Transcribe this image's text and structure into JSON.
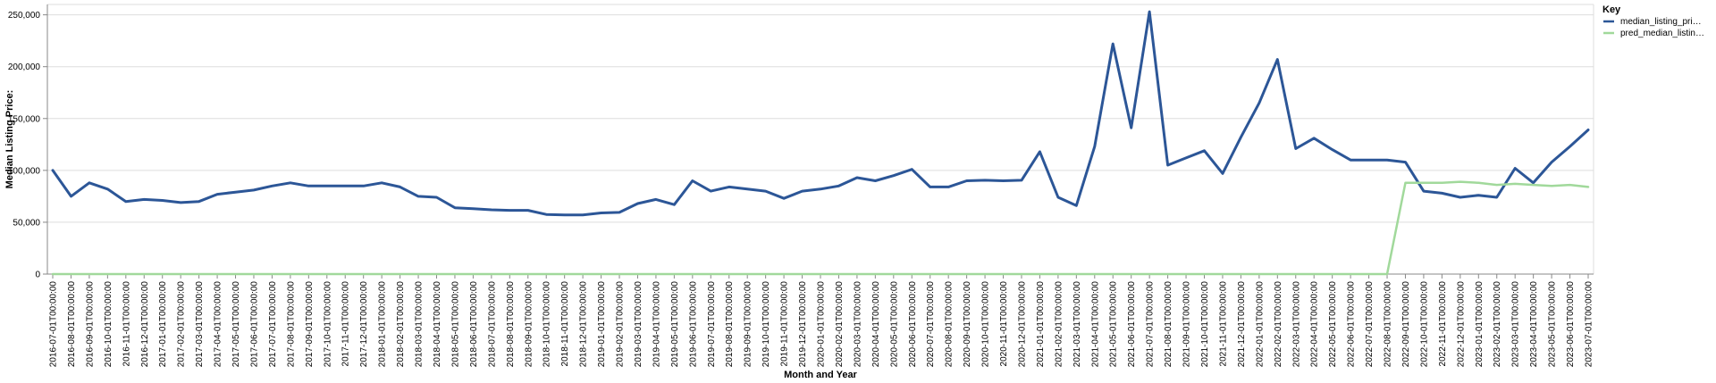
{
  "chart_data": {
    "type": "line",
    "title": "",
    "xlabel": "Month and Year",
    "ylabel": "Median Listing Price:",
    "ylim": [
      0,
      260000
    ],
    "yticks": [
      0,
      50000,
      100000,
      150000,
      200000,
      250000
    ],
    "ytick_labels": [
      "0",
      "50,000",
      "100,000",
      "150,000",
      "200,000",
      "250,000"
    ],
    "grid": true,
    "legend": {
      "title": "Key",
      "placement": "right"
    },
    "x": [
      "2016-07-01T00:00:00",
      "2016-08-01T00:00:00",
      "2016-09-01T00:00:00",
      "2016-10-01T00:00:00",
      "2016-11-01T00:00:00",
      "2016-12-01T00:00:00",
      "2017-01-01T00:00:00",
      "2017-02-01T00:00:00",
      "2017-03-01T00:00:00",
      "2017-04-01T00:00:00",
      "2017-05-01T00:00:00",
      "2017-06-01T00:00:00",
      "2017-07-01T00:00:00",
      "2017-08-01T00:00:00",
      "2017-09-01T00:00:00",
      "2017-10-01T00:00:00",
      "2017-11-01T00:00:00",
      "2017-12-01T00:00:00",
      "2018-01-01T00:00:00",
      "2018-02-01T00:00:00",
      "2018-03-01T00:00:00",
      "2018-04-01T00:00:00",
      "2018-05-01T00:00:00",
      "2018-06-01T00:00:00",
      "2018-07-01T00:00:00",
      "2018-08-01T00:00:00",
      "2018-09-01T00:00:00",
      "2018-10-01T00:00:00",
      "2018-11-01T00:00:00",
      "2018-12-01T00:00:00",
      "2019-01-01T00:00:00",
      "2019-02-01T00:00:00",
      "2019-03-01T00:00:00",
      "2019-04-01T00:00:00",
      "2019-05-01T00:00:00",
      "2019-06-01T00:00:00",
      "2019-07-01T00:00:00",
      "2019-08-01T00:00:00",
      "2019-09-01T00:00:00",
      "2019-10-01T00:00:00",
      "2019-11-01T00:00:00",
      "2019-12-01T00:00:00",
      "2020-01-01T00:00:00",
      "2020-02-01T00:00:00",
      "2020-03-01T00:00:00",
      "2020-04-01T00:00:00",
      "2020-05-01T00:00:00",
      "2020-06-01T00:00:00",
      "2020-07-01T00:00:00",
      "2020-08-01T00:00:00",
      "2020-09-01T00:00:00",
      "2020-10-01T00:00:00",
      "2020-11-01T00:00:00",
      "2020-12-01T00:00:00",
      "2021-01-01T00:00:00",
      "2021-02-01T00:00:00",
      "2021-03-01T00:00:00",
      "2021-04-01T00:00:00",
      "2021-05-01T00:00:00",
      "2021-06-01T00:00:00",
      "2021-07-01T00:00:00",
      "2021-08-01T00:00:00",
      "2021-09-01T00:00:00",
      "2021-10-01T00:00:00",
      "2021-11-01T00:00:00",
      "2021-12-01T00:00:00",
      "2022-01-01T00:00:00",
      "2022-02-01T00:00:00",
      "2022-03-01T00:00:00",
      "2022-04-01T00:00:00",
      "2022-05-01T00:00:00",
      "2022-06-01T00:00:00",
      "2022-07-01T00:00:00",
      "2022-08-01T00:00:00",
      "2022-09-01T00:00:00",
      "2022-10-01T00:00:00",
      "2022-11-01T00:00:00",
      "2022-12-01T00:00:00",
      "2023-01-01T00:00:00",
      "2023-02-01T00:00:00",
      "2023-03-01T00:00:00",
      "2023-04-01T00:00:00",
      "2023-05-01T00:00:00",
      "2023-06-01T00:00:00",
      "2023-07-01T00:00:00"
    ],
    "series": [
      {
        "name": "median_listing_pri…",
        "color": "#2c5697",
        "values": [
          100000,
          75000,
          88000,
          82000,
          70000,
          72000,
          71000,
          69000,
          70000,
          77000,
          79000,
          81000,
          85000,
          88000,
          85000,
          85000,
          85000,
          85000,
          88000,
          84000,
          75000,
          74000,
          64000,
          63000,
          62000,
          61500,
          61500,
          57500,
          57000,
          57000,
          59000,
          59500,
          68000,
          72000,
          67000,
          90000,
          80000,
          84000,
          82000,
          80000,
          73000,
          80000,
          82000,
          85000,
          93000,
          90000,
          95000,
          101000,
          84000,
          84000,
          90000,
          90500,
          90000,
          90500,
          118000,
          74000,
          66000,
          123000,
          222000,
          141000,
          253000,
          105000,
          112000,
          119000,
          97000,
          132000,
          165000,
          207000,
          121000,
          131000,
          120000,
          110000,
          110000,
          110000,
          108000,
          80000,
          78000,
          74000,
          76000,
          74000,
          102000,
          88000,
          108000,
          123000,
          139000
        ]
      },
      {
        "name": "pred_median_listin…",
        "color": "#a1d99b",
        "values": [
          0,
          0,
          0,
          0,
          0,
          0,
          0,
          0,
          0,
          0,
          0,
          0,
          0,
          0,
          0,
          0,
          0,
          0,
          0,
          0,
          0,
          0,
          0,
          0,
          0,
          0,
          0,
          0,
          0,
          0,
          0,
          0,
          0,
          0,
          0,
          0,
          0,
          0,
          0,
          0,
          0,
          0,
          0,
          0,
          0,
          0,
          0,
          0,
          0,
          0,
          0,
          0,
          0,
          0,
          0,
          0,
          0,
          0,
          0,
          0,
          0,
          0,
          0,
          0,
          0,
          0,
          0,
          0,
          0,
          0,
          0,
          0,
          0,
          0,
          88000,
          88000,
          88000,
          89000,
          88000,
          86000,
          87000,
          86000,
          85000,
          86000,
          84000
        ]
      }
    ]
  }
}
